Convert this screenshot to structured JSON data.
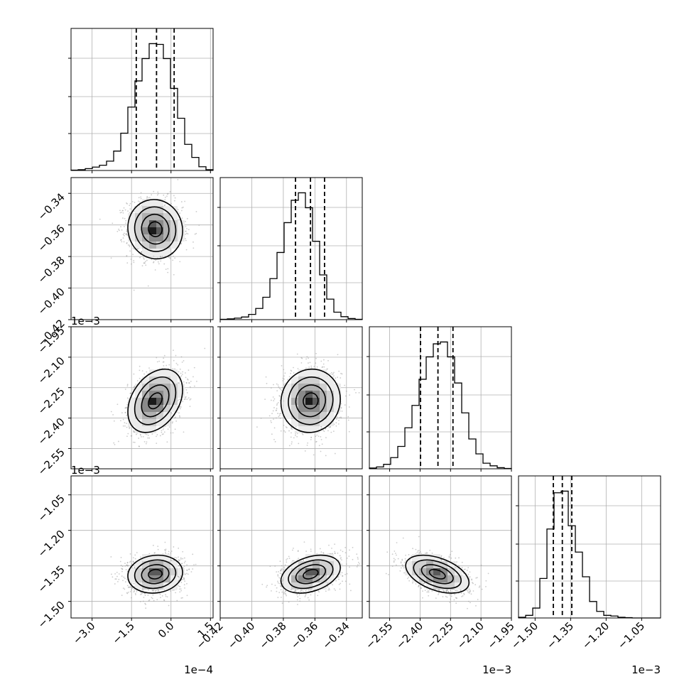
{
  "figure": {
    "type": "corner-plot",
    "num_parameters": 4,
    "colors": {
      "line": "#000000",
      "grid": "#b0b0b0",
      "scatter": "#9a9a9a",
      "background": "#ffffff"
    }
  },
  "chart_data": {
    "type": "corner",
    "grid": true,
    "parameters": [
      {
        "index": 0,
        "range": [
          -0.00038,
          0.00016
        ],
        "ticks": [
          -0.0003,
          -0.00015,
          0.0,
          0.00015
        ],
        "tick_labels": [
          "−3.0",
          "−1.5",
          "0.0",
          "1.5"
        ],
        "offset_text": "1e−4",
        "quantiles": [
          -0.000132,
          -5.5e-05,
          1.2e-05
        ],
        "mean": -6e-05,
        "sd": 5.2e-05
      },
      {
        "index": 1,
        "range": [
          -0.42,
          -0.33
        ],
        "ticks": [
          -0.42,
          -0.4,
          -0.38,
          -0.36,
          -0.34
        ],
        "tick_labels": [
          "−0.42",
          "−0.40",
          "−0.38",
          "−0.36",
          "−0.34"
        ],
        "offset_text": "",
        "quantiles": [
          -0.3723,
          -0.3628,
          -0.3539
        ],
        "mean": -0.3627,
        "sd": 0.0094
      },
      {
        "index": 2,
        "range": [
          -0.00265,
          -0.00195
        ],
        "ticks": [
          -0.00255,
          -0.0024,
          -0.00225,
          -0.0021,
          -0.00195
        ],
        "tick_labels": [
          "−2.55",
          "−2.40",
          "−2.25",
          "−2.10",
          "−1.95"
        ],
        "offset_text": "1e−3",
        "quantiles": [
          -0.002398,
          -0.002312,
          -0.002238
        ],
        "mean": -0.002315,
        "sd": 7.8e-05
      },
      {
        "index": 3,
        "range": [
          -0.00157,
          -0.00097
        ],
        "ticks": [
          -0.0015,
          -0.00135,
          -0.0012,
          -0.00105
        ],
        "tick_labels": [
          "−1.50",
          "−1.35",
          "−1.20",
          "−1.05"
        ],
        "offset_text": "1e−3",
        "quantiles": [
          -0.001423,
          -0.001385,
          -0.001345
        ],
        "mean": -0.001385,
        "sd": 4e-05
      }
    ],
    "histograms": [
      {
        "param": 0,
        "edges_start": -0.00038,
        "bin_width": 2.7e-05,
        "counts": [
          1,
          2,
          5,
          9,
          14,
          25,
          52,
          100,
          170,
          240,
          300,
          340,
          338,
          300,
          220,
          140,
          70,
          35,
          10,
          2
        ]
      },
      {
        "param": 1,
        "edges_start": -0.42,
        "bin_width": 0.0045,
        "counts": [
          1,
          2,
          4,
          7,
          14,
          30,
          60,
          110,
          180,
          260,
          320,
          340,
          300,
          210,
          120,
          55,
          20,
          8,
          3,
          1
        ]
      },
      {
        "param": 2,
        "edges_start": -0.00265,
        "bin_width": 3.5e-05,
        "counts": [
          2,
          5,
          12,
          30,
          60,
          110,
          170,
          240,
          300,
          335,
          340,
          300,
          230,
          150,
          80,
          40,
          15,
          8,
          3,
          1
        ]
      },
      {
        "param": 3,
        "edges_start": -0.00157,
        "bin_width": 3e-05,
        "counts": [
          2,
          8,
          30,
          120,
          270,
          380,
          385,
          280,
          200,
          125,
          50,
          20,
          8,
          6,
          2,
          1,
          0,
          0,
          0,
          0
        ]
      }
    ],
    "pairs": [
      {
        "row": 1,
        "col": 0,
        "correlation": -0.05
      },
      {
        "row": 2,
        "col": 0,
        "correlation": 0.35
      },
      {
        "row": 2,
        "col": 1,
        "correlation": 0.05
      },
      {
        "row": 3,
        "col": 0,
        "correlation": 0.1
      },
      {
        "row": 3,
        "col": 1,
        "correlation": 0.35
      },
      {
        "row": 3,
        "col": 2,
        "correlation": -0.45
      }
    ],
    "contour_levels_sigma": [
      0.5,
      1.0,
      1.5,
      2.0
    ]
  }
}
